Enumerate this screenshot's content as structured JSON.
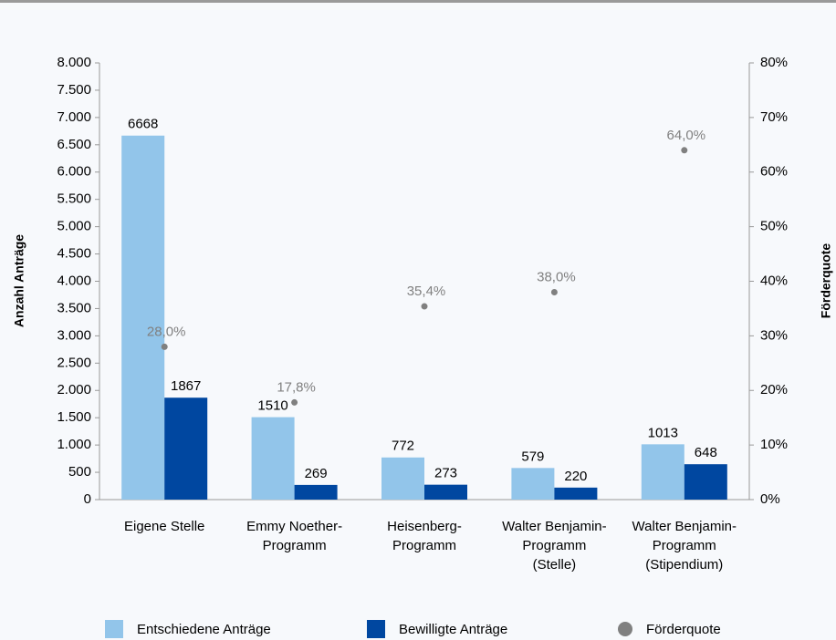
{
  "chart_data": {
    "type": "bar",
    "categories": [
      [
        "Eigene Stelle"
      ],
      [
        "Emmy Noether-",
        "Programm"
      ],
      [
        "Heisenberg-",
        "Programm"
      ],
      [
        "Walter Benjamin-",
        "Programm",
        "(Stelle)"
      ],
      [
        "Walter Benjamin-",
        "Programm",
        "(Stipendium)"
      ]
    ],
    "ylabel": "Anzahl Anträge",
    "y2label": "Förderquote",
    "ylim": [
      0,
      8000
    ],
    "yticks": [
      0,
      500,
      {
        "value": 1000,
        "label": "1.000"
      },
      {
        "value": 1500,
        "label": "1.500"
      },
      {
        "value": 2000,
        "label": "2.000"
      },
      {
        "value": 2500,
        "label": "2.500"
      },
      {
        "value": 3000,
        "label": "3.000"
      },
      {
        "value": 3500,
        "label": "3.500"
      },
      {
        "value": 4000,
        "label": "4.000"
      },
      {
        "value": 4500,
        "label": "4.500"
      },
      {
        "value": 5000,
        "label": "5.000"
      },
      {
        "value": 5500,
        "label": "5.500"
      },
      {
        "value": 6000,
        "label": "6.000"
      },
      {
        "value": 6500,
        "label": "6.500"
      },
      {
        "value": 7000,
        "label": "7.000"
      },
      {
        "value": 7500,
        "label": "7.500"
      },
      {
        "value": 8000,
        "label": "8.000"
      }
    ],
    "y2lim": [
      0,
      80
    ],
    "y2ticks": [
      {
        "value": 0,
        "label": "0%"
      },
      {
        "value": 10,
        "label": "10%"
      },
      {
        "value": 20,
        "label": "20%"
      },
      {
        "value": 30,
        "label": "30%"
      },
      {
        "value": 40,
        "label": "40%"
      },
      {
        "value": 50,
        "label": "50%"
      },
      {
        "value": 60,
        "label": "60%"
      },
      {
        "value": 70,
        "label": "70%"
      },
      {
        "value": 80,
        "label": "80%"
      }
    ],
    "series": [
      {
        "name": "Entschiedene Anträge",
        "color": "#92c5ea",
        "values": [
          6668,
          1510,
          772,
          579,
          1013
        ]
      },
      {
        "name": "Bewilligte Anträge",
        "color": "#0047a0",
        "values": [
          1867,
          269,
          273,
          220,
          648
        ]
      },
      {
        "name": "Förderquote",
        "color": "#808080",
        "axis": "y2",
        "type": "scatter",
        "values": [
          28.0,
          17.8,
          35.4,
          38.0,
          64.0
        ],
        "value_labels": [
          "28,0%",
          "17,8%",
          "35,4%",
          "38,0%",
          "64,0%"
        ]
      }
    ]
  }
}
